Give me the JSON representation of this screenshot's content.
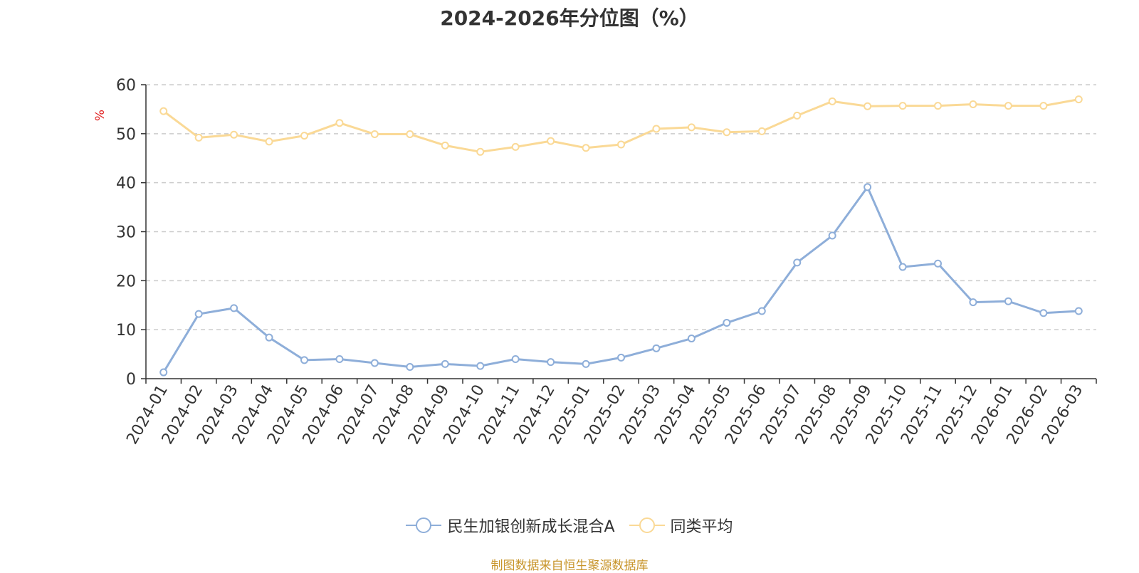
{
  "chart_data": {
    "type": "line",
    "title": "2024-2026年分位图（%）",
    "ylabel": "%",
    "xlabel": "",
    "ylim": [
      0,
      60
    ],
    "yticks": [
      0,
      10,
      20,
      30,
      40,
      50,
      60
    ],
    "grid": true,
    "legend_position": "bottom",
    "categories": [
      "2024-01",
      "2024-02",
      "2024-03",
      "2024-04",
      "2024-05",
      "2024-06",
      "2024-07",
      "2024-08",
      "2024-09",
      "2024-10",
      "2024-11",
      "2024-12",
      "2025-01",
      "2025-02",
      "2025-03",
      "2025-04",
      "2025-05",
      "2025-06",
      "2025-07",
      "2025-08",
      "2025-09",
      "2025-10",
      "2025-11",
      "2025-12",
      "2026-01",
      "2026-02",
      "2026-03"
    ],
    "series": [
      {
        "name": "民生加银创新成长混合A",
        "color": "#8eaed9",
        "values": [
          1.3,
          13.2,
          14.4,
          8.4,
          3.8,
          4.0,
          3.2,
          2.4,
          3.0,
          2.6,
          4.0,
          3.4,
          3.0,
          4.3,
          6.2,
          8.2,
          11.4,
          13.8,
          23.7,
          29.2,
          39.1,
          22.8,
          23.5,
          15.6,
          15.8,
          13.4,
          13.8
        ]
      },
      {
        "name": "同类平均",
        "color": "#fad996",
        "values": [
          54.6,
          49.2,
          49.8,
          48.4,
          49.6,
          52.2,
          49.9,
          49.9,
          47.6,
          46.3,
          47.3,
          48.5,
          47.1,
          47.8,
          51.0,
          51.3,
          50.3,
          50.5,
          53.7,
          56.6,
          55.6,
          55.7,
          55.7,
          56.0,
          55.7,
          55.7,
          57.0
        ]
      }
    ]
  },
  "source_note": "制图数据来自恒生聚源数据库",
  "colors": {
    "axis": "#333333",
    "grid": "#cccccc",
    "ylabel": "#e02020",
    "source": "#c8952b"
  }
}
